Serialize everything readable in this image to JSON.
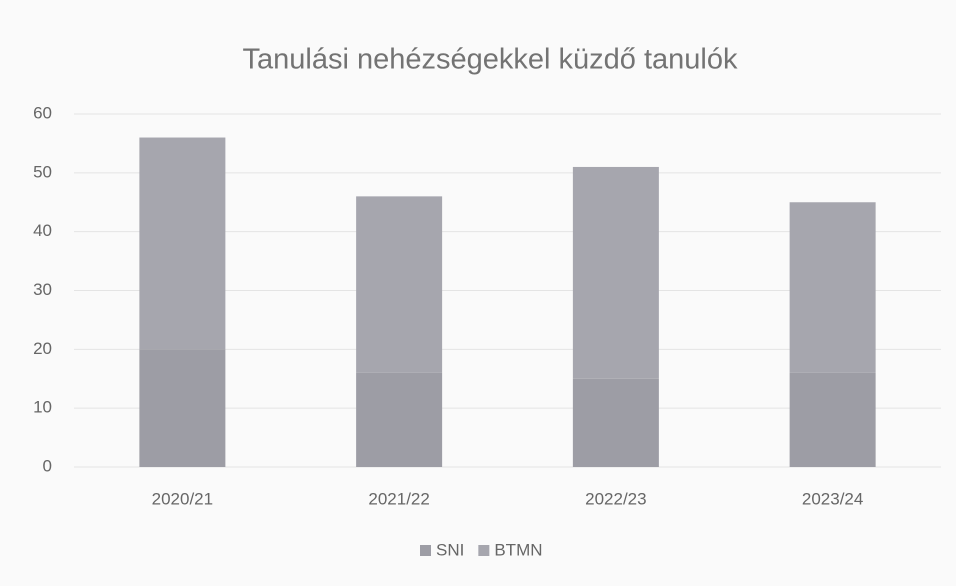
{
  "chart_data": {
    "type": "bar",
    "stacked": true,
    "title": "Tanulási nehézségekkel küzdő tanulók",
    "categories": [
      "2020/21",
      "2021/22",
      "2022/23",
      "2023/24"
    ],
    "series": [
      {
        "name": "SNI",
        "color": "#9d9da5",
        "values": [
          20,
          16,
          15,
          16
        ]
      },
      {
        "name": "BTMN",
        "color": "#a6a6ae",
        "values": [
          36,
          30,
          36,
          29
        ]
      }
    ],
    "ylim": [
      0,
      60
    ],
    "yticks": [
      0,
      10,
      20,
      30,
      40,
      50,
      60
    ],
    "grid": true,
    "legend": "bottom"
  }
}
